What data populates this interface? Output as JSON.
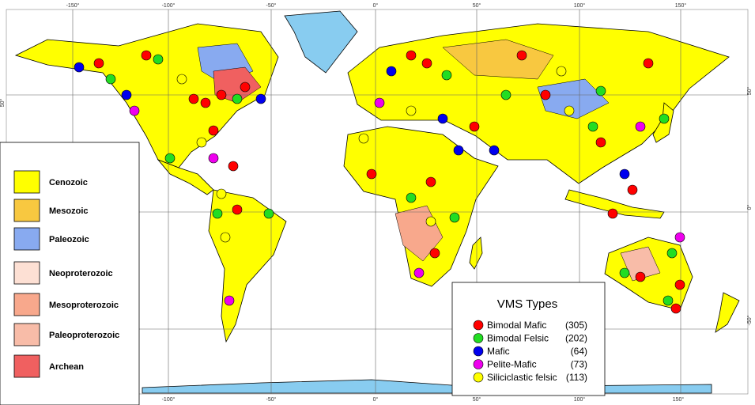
{
  "map": {
    "longitude_top": [
      "-150°",
      "-100°",
      "-50°",
      "0°",
      "50°",
      "100°",
      "150°"
    ],
    "longitude_bottom": [
      "-100°",
      "-50°",
      "0°",
      "50°",
      "100°",
      "150°"
    ],
    "latitude_left": [
      "50°"
    ],
    "latitude_right": [
      "50°",
      "0°",
      "-50°"
    ]
  },
  "geology_legend": [
    {
      "label": "Cenozoic",
      "color": "#ffff00"
    },
    {
      "label": "Mesozoic",
      "color": "#f8c840"
    },
    {
      "label": "Paleozoic",
      "color": "#88aaf0"
    },
    {
      "label": "Neoproterozoic",
      "color": "#fde0d4"
    },
    {
      "label": "Mesoproterozoic",
      "color": "#f8a88c"
    },
    {
      "label": "Paleoproterozoic",
      "color": "#f8bca8"
    },
    {
      "label": "Archean",
      "color": "#f06060"
    }
  ],
  "vms_legend": {
    "title": "VMS Types",
    "items": [
      {
        "name": "Bimodal Mafic",
        "count": "(305)",
        "color": "#ff0000"
      },
      {
        "name": "Bimodal Felsic",
        "count": "(202)",
        "color": "#22dd22"
      },
      {
        "name": "Mafic",
        "count": "(64)",
        "color": "#0000ee"
      },
      {
        "name": "Pelite-Mafic",
        "count": "(73)",
        "color": "#ee00ee"
      },
      {
        "name": "Siliciclastic felsic",
        "count": "(113)",
        "color": "#ffff00"
      }
    ]
  }
}
